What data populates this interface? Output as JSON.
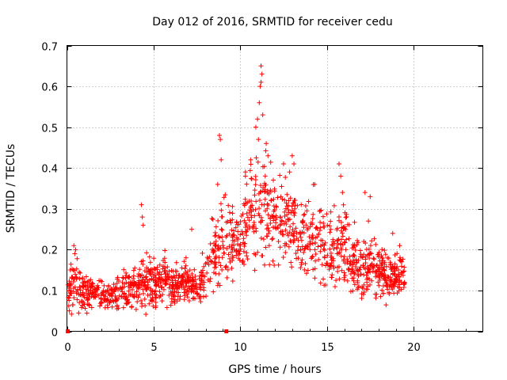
{
  "chart_data": {
    "type": "scatter",
    "title": "Day 012 of 2016, SRMTID for receiver cedu",
    "xlabel": "GPS time / hours",
    "ylabel": "SRMTID / TECUs",
    "xlim": [
      0,
      24
    ],
    "ylim": [
      0,
      0.7
    ],
    "x_ticks": [
      0,
      5,
      10,
      15,
      20
    ],
    "y_ticks": [
      0,
      0.1,
      0.2,
      0.3,
      0.4,
      0.5,
      0.6,
      0.7
    ],
    "x_tick_labels": [
      "0",
      "5",
      "10",
      "15",
      "20"
    ],
    "y_tick_labels": [
      "0",
      "0.1",
      "0.2",
      "0.3",
      "0.4",
      "0.5",
      "0.6",
      "0.7"
    ],
    "grid": true,
    "marker": "plus",
    "color": "#ff0000",
    "series": [
      {
        "name": "SRMTID",
        "x_range": [
          0.05,
          19.5
        ],
        "envelope_note": "dense scatter; approximate per-hour level and spread",
        "profile": [
          [
            0.0,
            0.1,
            0.03
          ],
          [
            0.5,
            0.11,
            0.04
          ],
          [
            1.0,
            0.09,
            0.03
          ],
          [
            1.5,
            0.1,
            0.025
          ],
          [
            2.0,
            0.09,
            0.02
          ],
          [
            2.5,
            0.09,
            0.025
          ],
          [
            3.0,
            0.085,
            0.03
          ],
          [
            3.5,
            0.1,
            0.03
          ],
          [
            4.0,
            0.1,
            0.035
          ],
          [
            4.5,
            0.12,
            0.04
          ],
          [
            5.0,
            0.12,
            0.035
          ],
          [
            5.5,
            0.13,
            0.035
          ],
          [
            6.0,
            0.11,
            0.03
          ],
          [
            6.5,
            0.12,
            0.03
          ],
          [
            7.0,
            0.12,
            0.03
          ],
          [
            7.5,
            0.11,
            0.03
          ],
          [
            8.0,
            0.13,
            0.04
          ],
          [
            8.5,
            0.19,
            0.06
          ],
          [
            9.0,
            0.21,
            0.07
          ],
          [
            9.5,
            0.23,
            0.06
          ],
          [
            10.0,
            0.21,
            0.05
          ],
          [
            10.5,
            0.3,
            0.08
          ],
          [
            11.0,
            0.29,
            0.1
          ],
          [
            11.5,
            0.3,
            0.09
          ],
          [
            12.0,
            0.28,
            0.07
          ],
          [
            12.5,
            0.27,
            0.07
          ],
          [
            13.0,
            0.26,
            0.07
          ],
          [
            13.5,
            0.22,
            0.06
          ],
          [
            14.0,
            0.23,
            0.06
          ],
          [
            14.5,
            0.24,
            0.06
          ],
          [
            15.0,
            0.21,
            0.06
          ],
          [
            15.5,
            0.2,
            0.06
          ],
          [
            16.0,
            0.22,
            0.07
          ],
          [
            16.5,
            0.18,
            0.05
          ],
          [
            17.0,
            0.15,
            0.05
          ],
          [
            17.5,
            0.17,
            0.05
          ],
          [
            18.0,
            0.15,
            0.04
          ],
          [
            18.5,
            0.14,
            0.04
          ],
          [
            19.0,
            0.13,
            0.035
          ],
          [
            19.5,
            0.14,
            0.03
          ]
        ],
        "highlights": [
          {
            "x": 0.4,
            "y": 0.21
          },
          {
            "x": 0.45,
            "y": 0.19
          },
          {
            "x": 0.5,
            "y": 0.2
          },
          {
            "x": 4.3,
            "y": 0.31
          },
          {
            "x": 4.35,
            "y": 0.28
          },
          {
            "x": 4.4,
            "y": 0.26
          },
          {
            "x": 7.2,
            "y": 0.25
          },
          {
            "x": 8.8,
            "y": 0.48
          },
          {
            "x": 8.85,
            "y": 0.47
          },
          {
            "x": 8.9,
            "y": 0.42
          },
          {
            "x": 8.7,
            "y": 0.36
          },
          {
            "x": 10.3,
            "y": 0.38
          },
          {
            "x": 10.6,
            "y": 0.42
          },
          {
            "x": 10.9,
            "y": 0.5
          },
          {
            "x": 11.0,
            "y": 0.52
          },
          {
            "x": 11.1,
            "y": 0.56
          },
          {
            "x": 11.15,
            "y": 0.6
          },
          {
            "x": 11.2,
            "y": 0.65
          },
          {
            "x": 11.25,
            "y": 0.63
          },
          {
            "x": 11.2,
            "y": 0.61
          },
          {
            "x": 11.3,
            "y": 0.53
          },
          {
            "x": 11.05,
            "y": 0.47
          },
          {
            "x": 11.5,
            "y": 0.46
          },
          {
            "x": 11.6,
            "y": 0.43
          },
          {
            "x": 12.5,
            "y": 0.41
          },
          {
            "x": 13.0,
            "y": 0.43
          },
          {
            "x": 13.1,
            "y": 0.41
          },
          {
            "x": 14.3,
            "y": 0.36
          },
          {
            "x": 15.7,
            "y": 0.41
          },
          {
            "x": 15.8,
            "y": 0.38
          },
          {
            "x": 15.9,
            "y": 0.34
          },
          {
            "x": 17.2,
            "y": 0.34
          },
          {
            "x": 17.5,
            "y": 0.33
          },
          {
            "x": 17.4,
            "y": 0.27
          },
          {
            "x": 18.8,
            "y": 0.24
          },
          {
            "x": 19.2,
            "y": 0.21
          }
        ],
        "baseline_markers": [
          {
            "x": 0.05,
            "y": 0.0
          },
          {
            "x": 9.2,
            "y": 0.0
          }
        ]
      }
    ]
  }
}
